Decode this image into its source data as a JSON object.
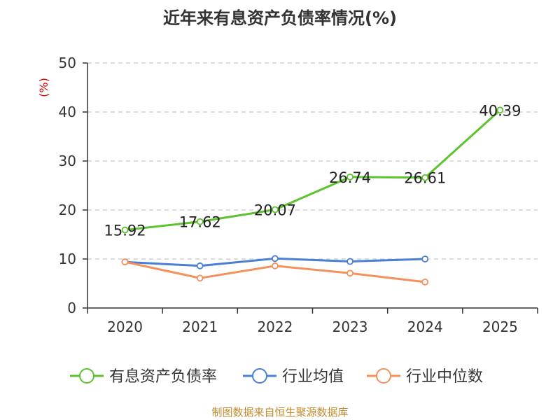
{
  "title": "近年来有息资产负债率情况(%)",
  "source": "制图数据来自恒生聚源数据库",
  "chart_data": {
    "type": "line",
    "title": "近年来有息资产负债率情况(%)",
    "ylabel": "(%)",
    "xlabel": "",
    "categories": [
      "2020",
      "2021",
      "2022",
      "2023",
      "2024",
      "2025"
    ],
    "ylim": [
      0,
      50
    ],
    "yticks": [
      0,
      10,
      20,
      30,
      40,
      50
    ],
    "grid": true,
    "legend_position": "bottom",
    "series": [
      {
        "name": "有息资产负债率",
        "color": "#5cc22d",
        "values": [
          15.92,
          17.62,
          20.07,
          26.74,
          26.61,
          40.39
        ],
        "labels": [
          "15.92",
          "17.62",
          "20.07",
          "26.74",
          "26.61",
          "40.39"
        ]
      },
      {
        "name": "行业均值",
        "color": "#4a7fd6",
        "values": [
          9.4,
          8.6,
          10.1,
          9.5,
          10.0,
          null
        ]
      },
      {
        "name": "行业中位数",
        "color": "#f5905c",
        "values": [
          9.4,
          6.1,
          8.6,
          7.1,
          5.3,
          null
        ]
      }
    ]
  }
}
